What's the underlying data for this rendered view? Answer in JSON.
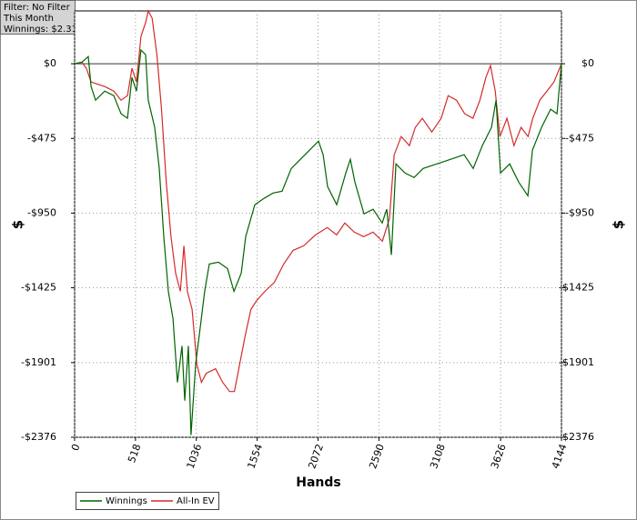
{
  "chart_data": {
    "type": "line",
    "filter_lines": [
      "Filter: No Filter",
      "This Month",
      "Winnings: $2.31"
    ],
    "x_label": "Hands",
    "y_label": "$",
    "xlim": [
      0,
      4144
    ],
    "xticks": [
      0,
      518,
      1036,
      1554,
      2072,
      2590,
      3108,
      3626,
      4144
    ],
    "ylim": [
      -2376,
      336
    ],
    "yticks": [
      {
        "value": 0,
        "label": "$0"
      },
      {
        "value": -475,
        "label": "-$475"
      },
      {
        "value": -950,
        "label": "-$950"
      },
      {
        "value": -1425,
        "label": "-$1425"
      },
      {
        "value": -1901,
        "label": "-$1901"
      },
      {
        "value": -2376,
        "label": "-$2376"
      }
    ],
    "grid": true,
    "series": [
      {
        "name": "Winnings",
        "color": "#006400",
        "x": [
          0,
          62,
          116,
          140,
          178,
          256,
          333,
          395,
          450,
          488,
          527,
          565,
          604,
          627,
          682,
          720,
          759,
          798,
          837,
          875,
          914,
          937,
          968,
          991,
          1030,
          1069,
          1107,
          1146,
          1224,
          1301,
          1356,
          1418,
          1456,
          1534,
          1611,
          1689,
          1766,
          1844,
          1921,
          1999,
          2076,
          2115,
          2153,
          2231,
          2308,
          2347,
          2386,
          2463,
          2541,
          2618,
          2657,
          2696,
          2735,
          2812,
          2889,
          2967,
          3083,
          3199,
          3315,
          3393,
          3470,
          3548,
          3587,
          3625,
          3703,
          3780,
          3858,
          3897,
          3974,
          4052,
          4106,
          4144
        ],
        "values": [
          0,
          10,
          46,
          -145,
          -232,
          -174,
          -203,
          -318,
          -347,
          -87,
          -174,
          87,
          58,
          -232,
          -405,
          -666,
          -1100,
          -1448,
          -1621,
          -2027,
          -1795,
          -2143,
          -1795,
          -2362,
          -1911,
          -1679,
          -1448,
          -1274,
          -1262,
          -1303,
          -1448,
          -1332,
          -1100,
          -897,
          -857,
          -822,
          -811,
          -666,
          -608,
          -550,
          -492,
          -579,
          -782,
          -897,
          -695,
          -608,
          -753,
          -955,
          -926,
          -1013,
          -926,
          -1216,
          -637,
          -695,
          -724,
          -666,
          -637,
          -608,
          -579,
          -666,
          -521,
          -405,
          -232,
          -695,
          -637,
          -753,
          -840,
          -550,
          -405,
          -289,
          -318,
          2
        ]
      },
      {
        "name": "All-In EV",
        "color": "#d42a2a",
        "x": [
          0,
          62,
          100,
          140,
          256,
          333,
          395,
          450,
          488,
          527,
          565,
          604,
          627,
          660,
          700,
          740,
          780,
          820,
          860,
          900,
          930,
          960,
          1000,
          1040,
          1080,
          1120,
          1200,
          1260,
          1320,
          1360,
          1420,
          1450,
          1500,
          1550,
          1620,
          1700,
          1780,
          1860,
          1950,
          2050,
          2150,
          2230,
          2300,
          2380,
          2460,
          2540,
          2620,
          2680,
          2720,
          2780,
          2850,
          2900,
          2960,
          3040,
          3120,
          3180,
          3250,
          3320,
          3390,
          3450,
          3500,
          3540,
          3580,
          3620,
          3680,
          3740,
          3800,
          3860,
          3900,
          3960,
          4020,
          4080,
          4144
        ],
        "values": [
          0,
          10,
          -29,
          -116,
          -145,
          -174,
          -232,
          -203,
          -29,
          -116,
          174,
          261,
          336,
          290,
          58,
          -290,
          -753,
          -1100,
          -1332,
          -1448,
          -1158,
          -1448,
          -1563,
          -1911,
          -2027,
          -1969,
          -1940,
          -2027,
          -2085,
          -2085,
          -1853,
          -1737,
          -1563,
          -1506,
          -1448,
          -1390,
          -1274,
          -1187,
          -1158,
          -1089,
          -1042,
          -1089,
          -1013,
          -1071,
          -1100,
          -1071,
          -1129,
          -984,
          -579,
          -463,
          -521,
          -405,
          -347,
          -434,
          -347,
          -203,
          -232,
          -318,
          -347,
          -232,
          -87,
          -12,
          -174,
          -463,
          -347,
          -521,
          -405,
          -463,
          -347,
          -232,
          -174,
          -116,
          0
        ]
      }
    ]
  }
}
